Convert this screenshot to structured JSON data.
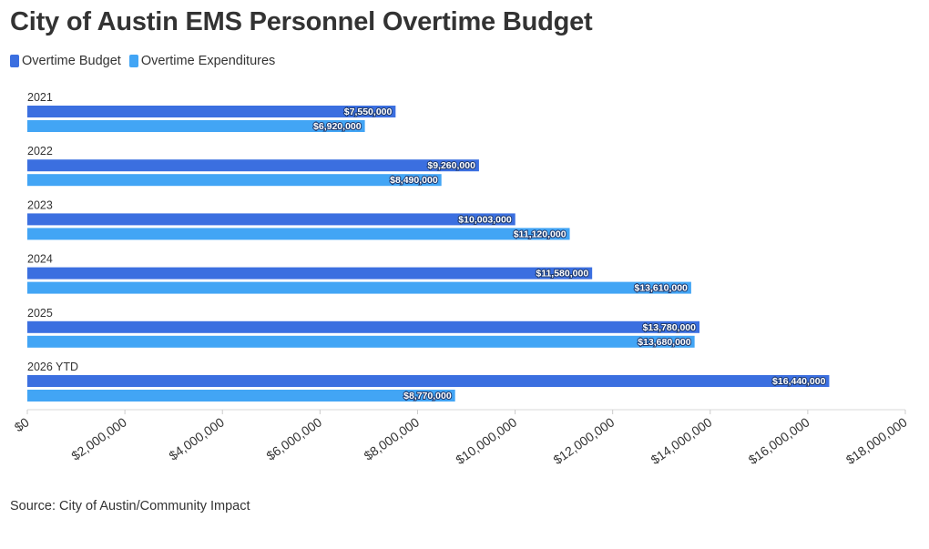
{
  "title": "City of Austin EMS Personnel Overtime Budget",
  "legend": [
    {
      "label": "Overtime Budget",
      "color": "#3b6fe0"
    },
    {
      "label": "Overtime Expenditures",
      "color": "#42a5f5"
    }
  ],
  "source": "Source: City of Austin/Community Impact",
  "chart_data": {
    "type": "bar",
    "orientation": "horizontal",
    "title": "City of Austin EMS Personnel Overtime Budget",
    "categories": [
      "2021",
      "2022",
      "2023",
      "2024",
      "2025",
      "2026 YTD"
    ],
    "series": [
      {
        "name": "Overtime Budget",
        "color": "#3b6fe0",
        "values": [
          7550000,
          9260000,
          10003000,
          11580000,
          13780000,
          16440000
        ],
        "labels": [
          "$7,550,000",
          "$9,260,000",
          "$10,003,000",
          "$11,580,000",
          "$13,780,000",
          "$16,440,000"
        ]
      },
      {
        "name": "Overtime Expenditures",
        "color": "#42a5f5",
        "values": [
          6920000,
          8490000,
          11120000,
          13610000,
          13680000,
          8770000
        ],
        "labels": [
          "$6,920,000",
          "$8,490,000",
          "$11,120,000",
          "$13,610,000",
          "$13,680,000",
          "$8,770,000"
        ]
      }
    ],
    "xlim": [
      0,
      18000000
    ],
    "xticks": [
      "$0",
      "$2,000,000",
      "$4,000,000",
      "$6,000,000",
      "$8,000,000",
      "$10,000,000",
      "$12,000,000",
      "$14,000,000",
      "$16,000,000",
      "$18,000,000"
    ],
    "xlabel": "",
    "ylabel": "",
    "grid": false,
    "legend_position": "top-left"
  }
}
